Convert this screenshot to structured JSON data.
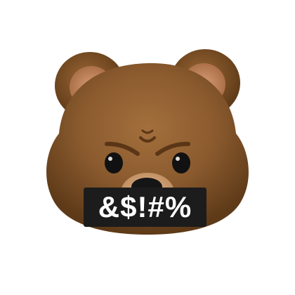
{
  "emoji": {
    "icon": "angry-bear-face-icon",
    "censor_text": "&$!#%",
    "colors": {
      "fur": "#8a5a2e",
      "fur_dark": "#5e3a18",
      "inner_ear": "#c9906a",
      "snout": "#d0a47e",
      "eyes": "#111111",
      "censor_bar": "#1c1c1c",
      "censor_text": "#ffffff"
    }
  }
}
